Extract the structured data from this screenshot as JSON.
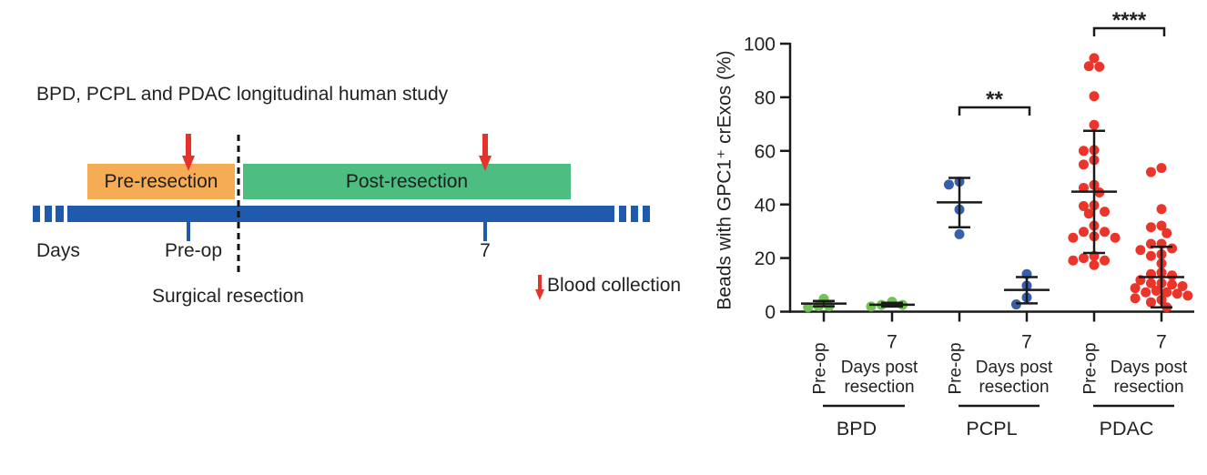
{
  "diagram": {
    "title": "BPD, PCPL and PDAC longitudinal human study",
    "phases": [
      {
        "label": "Pre-resection",
        "color": "#F6AC55"
      },
      {
        "label": "Post-resection",
        "color": "#4DBD82"
      }
    ],
    "timeline_color": "#1F5AAD",
    "axis_label": "Days",
    "timepoints": [
      "Pre-op",
      "7"
    ],
    "event_label": "Surgical resection",
    "legend": {
      "icon": "red-down-arrow-icon",
      "label": "Blood collection",
      "color": "#E5322B"
    }
  },
  "chart_data": {
    "type": "scatter",
    "subtype": "dot plot with center line and error bars",
    "title": "",
    "xlabel": "",
    "ylabel": "Beads with GPC1⁺ crExos (%)",
    "ylim": [
      0,
      100
    ],
    "yticks": [
      0,
      20,
      40,
      60,
      80,
      100
    ],
    "grid": false,
    "legend": "none",
    "categories": [
      {
        "group": "BPD",
        "label": "Pre-op",
        "sublabel": [
          "",
          ""
        ]
      },
      {
        "group": "BPD",
        "label": "7",
        "sublabel": [
          "Days post",
          "resection"
        ]
      },
      {
        "group": "PCPL",
        "label": "Pre-op",
        "sublabel": [
          "",
          ""
        ]
      },
      {
        "group": "PCPL",
        "label": "7",
        "sublabel": [
          "Days post",
          "resection"
        ]
      },
      {
        "group": "PDAC",
        "label": "Pre-op",
        "sublabel": [
          "",
          ""
        ]
      },
      {
        "group": "PDAC",
        "label": "7",
        "sublabel": [
          "Days post",
          "resection"
        ]
      }
    ],
    "groups": [
      {
        "name": "BPD",
        "color": "#6BBF4B"
      },
      {
        "name": "PCPL",
        "color": "#2D56A6"
      },
      {
        "name": "PDAC",
        "color": "#EA2A1F"
      }
    ],
    "series": [
      {
        "name": "BPD Pre-op",
        "color": "#6BBF4B",
        "values": [
          2.0,
          1.6,
          2.0,
          4.8
        ],
        "center": 3.0,
        "upper": 4.0,
        "lower": 2.0
      },
      {
        "name": "BPD 7 days post resection",
        "color": "#6BBF4B",
        "values": [
          2.5,
          1.9,
          2.5,
          3.7
        ],
        "center": 2.6,
        "upper": 3.3,
        "lower": 1.9
      },
      {
        "name": "PCPL Pre-op",
        "color": "#2D56A6",
        "values": [
          47.4,
          48.5,
          38.1,
          28.9
        ],
        "center": 40.8,
        "upper": 49.9,
        "lower": 31.5
      },
      {
        "name": "PCPL 7 days post resection",
        "color": "#2D56A6",
        "values": [
          14.0,
          9.7,
          5.3,
          2.7
        ],
        "center": 8.1,
        "upper": 12.9,
        "lower": 3.1
      },
      {
        "name": "PDAC Pre-op",
        "color": "#EA2A1F",
        "values": [
          94.6,
          91.6,
          91.4,
          80.4,
          69.7,
          60.3,
          60.0,
          56.6,
          54.9,
          47.3,
          46.2,
          44.5,
          39.7,
          39.4,
          37.3,
          36.6,
          32.1,
          29.8,
          29.8,
          28.1,
          27.6,
          27.6,
          20.8,
          20.0,
          19.1,
          19.1,
          17.4
        ],
        "center": 44.8,
        "upper": 67.5,
        "lower": 21.9
      },
      {
        "name": "PDAC 7 days post resection",
        "color": "#EA2A1F",
        "values": [
          53.6,
          52.1,
          38.3,
          32.1,
          31.5,
          29.3,
          25.3,
          25.3,
          23.6,
          23.0,
          21.4,
          20.8,
          18.0,
          14.6,
          14.0,
          13.5,
          11.8,
          10.6,
          10.6,
          10.1,
          9.5,
          8.8,
          7.8,
          7.2,
          7.2,
          6.7,
          6.0,
          5.0,
          4.4,
          3.5,
          1.6
        ],
        "center": 12.9,
        "upper": 24.2,
        "lower": 1.6
      }
    ],
    "annotations": [
      {
        "text": "**",
        "from_category": 2,
        "to_category": 3
      },
      {
        "text": "****",
        "from_category": 4,
        "to_category": 5
      }
    ]
  }
}
